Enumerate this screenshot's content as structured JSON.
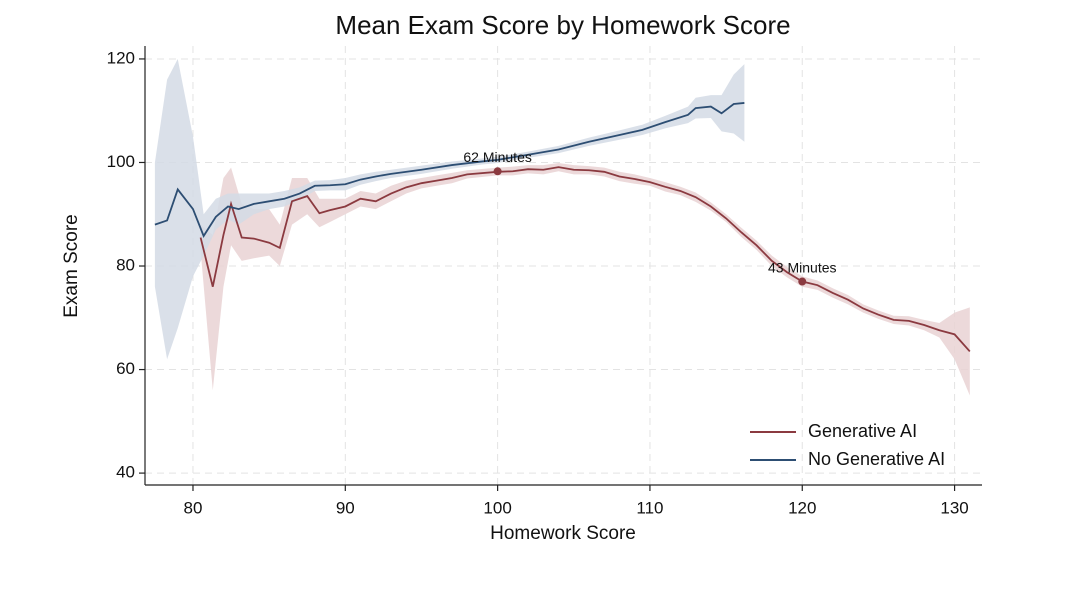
{
  "chart_data": {
    "type": "line",
    "title": "Mean Exam Score by Homework Score",
    "x_label": "Homework Score",
    "y_label": "Exam Score",
    "xlim": [
      76.85,
      131.8
    ],
    "ylim": [
      37.7,
      122.5
    ],
    "xticks": [
      80,
      90,
      100,
      110,
      120,
      130
    ],
    "yticks": [
      40,
      60,
      80,
      100,
      120
    ],
    "grid": true,
    "legend": "lower right",
    "series": [
      {
        "name": "Generative AI",
        "color": "#8b3a40",
        "band_color": "#e9d2d3",
        "x": [
          80.5,
          81.3,
          82,
          82.5,
          83.2,
          84,
          85,
          85.7,
          86.5,
          87.5,
          88.3,
          89,
          90,
          91,
          92,
          93,
          94,
          95,
          96,
          97,
          98,
          100,
          101,
          102,
          103,
          104,
          105,
          106,
          107,
          108,
          109,
          110,
          111,
          112,
          113,
          114,
          115,
          116,
          117,
          118,
          119,
          120,
          121,
          122,
          123,
          124,
          125,
          126,
          127,
          128,
          129,
          130,
          131
        ],
        "values": [
          85.5,
          76,
          86,
          92,
          85.5,
          85.3,
          84.5,
          83.5,
          92.5,
          93.5,
          90.2,
          90.8,
          91.5,
          93,
          92.5,
          94,
          95.2,
          96,
          96.5,
          97,
          97.7,
          98.2,
          98.3,
          98.7,
          98.6,
          99.1,
          98.6,
          98.5,
          98.2,
          97.3,
          96.8,
          96.2,
          95.3,
          94.5,
          93.3,
          91.5,
          89.2,
          86.5,
          84,
          81,
          78.8,
          77,
          76.3,
          74.8,
          73.5,
          71.8,
          70.6,
          69.6,
          69.4,
          68.6,
          67.6,
          66.8,
          63.5
        ],
        "upper": [
          88,
          86,
          97,
          99,
          92,
          91,
          91,
          88,
          97,
          97,
          93,
          93,
          93,
          94.5,
          94,
          95.5,
          96.5,
          97,
          97.5,
          98,
          98.5,
          99,
          99.2,
          99.5,
          99.5,
          99.9,
          99.5,
          99.3,
          99,
          98.2,
          97.7,
          97,
          96.2,
          95.3,
          94.2,
          92.3,
          90,
          87.4,
          84.9,
          82,
          79.8,
          78,
          77.2,
          75.7,
          74.4,
          72.6,
          71.4,
          70.4,
          70.3,
          69.6,
          69,
          71,
          72
        ],
        "lower": [
          83,
          56,
          76,
          84,
          81,
          81.5,
          82,
          80,
          88,
          90,
          87.5,
          88.5,
          90,
          91.5,
          91,
          92.5,
          94,
          95,
          95.5,
          96,
          96.9,
          97.5,
          97.5,
          97.9,
          97.7,
          98.3,
          97.7,
          97.7,
          97.3,
          96.4,
          95.9,
          95.5,
          94.4,
          93.7,
          92.4,
          90.7,
          88.5,
          85.6,
          83.1,
          80,
          77.8,
          76,
          75.4,
          73.9,
          72.6,
          71,
          69.8,
          68.8,
          68.5,
          67.6,
          66.2,
          62,
          55
        ]
      },
      {
        "name": "No Generative AI",
        "color": "#2d4e73",
        "band_color": "#d3dbe5",
        "x": [
          77.5,
          78.3,
          79,
          80,
          80.7,
          81.5,
          82.3,
          83,
          84,
          85,
          86,
          87,
          88,
          89,
          90,
          91,
          92,
          93,
          95,
          97,
          99,
          100,
          102,
          104,
          106,
          108,
          109.5,
          111,
          112.5,
          113,
          114,
          114.7,
          115.5,
          116.2
        ],
        "values": [
          88,
          88.8,
          94.8,
          91,
          85.8,
          89.5,
          91.5,
          91,
          92,
          92.5,
          93,
          94,
          95.5,
          95.6,
          95.8,
          96.7,
          97.3,
          97.8,
          98.6,
          99.5,
          100.2,
          100.5,
          101.5,
          102.5,
          104,
          105.3,
          106.3,
          107.8,
          109.2,
          110.5,
          110.8,
          109.5,
          111.3,
          111.5
        ],
        "upper": [
          100,
          116,
          120,
          105,
          90,
          93,
          94,
          94,
          94,
          94,
          94.5,
          95.2,
          96.5,
          96.6,
          97,
          97.7,
          98.2,
          98.6,
          99.4,
          100.2,
          100.8,
          101.1,
          102.1,
          103.2,
          104.8,
          106.2,
          107.3,
          109,
          110.8,
          112.5,
          113,
          113,
          117,
          119
        ],
        "lower": [
          76,
          62,
          68,
          78,
          82,
          87,
          89,
          88,
          90,
          91,
          91.5,
          92.8,
          94.5,
          94.6,
          94.6,
          95.7,
          96.4,
          97,
          97.8,
          98.8,
          99.6,
          99.9,
          100.9,
          101.8,
          103.2,
          104.4,
          105.3,
          106.6,
          107.6,
          108.5,
          108.6,
          106,
          105.6,
          104
        ]
      }
    ],
    "annotations": [
      {
        "text": "62 Minutes",
        "x": 100,
        "y": 98.3
      },
      {
        "text": "43 Minutes",
        "x": 120,
        "y": 77
      }
    ]
  }
}
